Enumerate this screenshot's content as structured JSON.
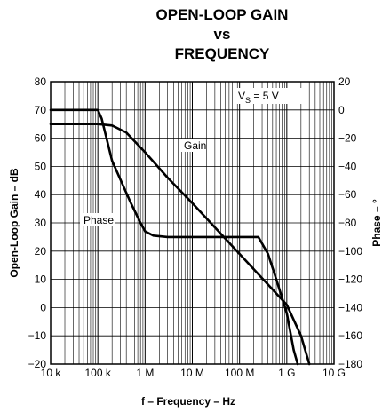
{
  "chart_data": {
    "type": "line",
    "title_lines": [
      "OPEN-LOOP GAIN",
      "vs",
      "FREQUENCY"
    ],
    "xlabel": "f – Frequency – Hz",
    "ylabel": "Open-Loop Gain – dB",
    "ylabel_right": "Phase – °",
    "x_scale": "log",
    "xlim": [
      10000,
      10000000000
    ],
    "ylim": [
      -20,
      80
    ],
    "ylim_right": [
      -180,
      20
    ],
    "x_ticks": [
      10000,
      100000,
      1000000,
      10000000,
      100000000,
      1000000000,
      10000000000
    ],
    "x_tick_labels": [
      "10 k",
      "100 k",
      "1 M",
      "10 M",
      "100 M",
      "1 G",
      "10 G"
    ],
    "y_ticks": [
      -20,
      -10,
      0,
      10,
      20,
      30,
      40,
      50,
      60,
      70,
      80
    ],
    "y_tick_labels": [
      "−20",
      "−10",
      "0",
      "10",
      "20",
      "30",
      "40",
      "50",
      "60",
      "70",
      "80"
    ],
    "y_right_ticks": [
      -180,
      -160,
      -140,
      -120,
      -100,
      -80,
      -60,
      -40,
      -20,
      0,
      20
    ],
    "y_right_tick_labels": [
      "−180",
      "−160",
      "−140",
      "−120",
      "−100",
      "−80",
      "−60",
      "−40",
      "−20",
      "0",
      "20"
    ],
    "grid": true,
    "annotation": {
      "main": "V",
      "sub": "S",
      "rest": " = 5 V"
    },
    "series": [
      {
        "name": "Gain",
        "axis": "left",
        "x": [
          10000,
          100000,
          200000,
          400000,
          1000000,
          3000000,
          10000000,
          100000000,
          1000000000,
          2000000000,
          3000000000
        ],
        "y": [
          65,
          65,
          64.5,
          62,
          55,
          46,
          37,
          19,
          1,
          -10,
          -20
        ]
      },
      {
        "name": "Phase",
        "axis": "left",
        "x": [
          10000,
          100000,
          120000,
          200000,
          500000,
          800000,
          1000000,
          1500000,
          3000000,
          10000000,
          100000000,
          250000000,
          400000000,
          600000000,
          1000000000,
          1400000000,
          1700000000
        ],
        "y": [
          70,
          70,
          67,
          52,
          37,
          30,
          27,
          25.5,
          25,
          25,
          25,
          25,
          19,
          10,
          -2,
          -15,
          -20
        ]
      }
    ]
  }
}
